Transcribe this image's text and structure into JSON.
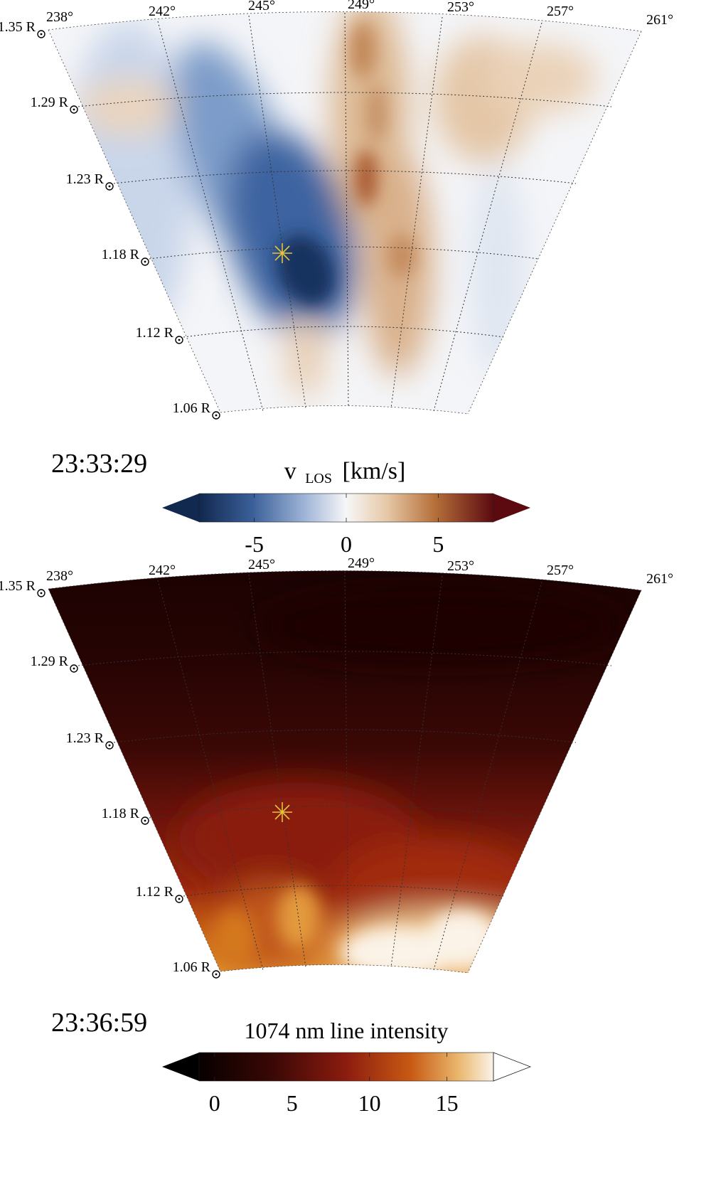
{
  "chart_data": [
    {
      "type": "heatmap",
      "panel": "top",
      "timestamp": "23:33:29",
      "title": "v LOS [km/s]",
      "title_main": "v",
      "title_sub": "LOS",
      "title_unit": "[km/s]",
      "colormap": "diverging blue-white-red",
      "colorbar_ticks": [
        "-5",
        "0",
        "5"
      ],
      "colorbar_tick_values": [
        -5,
        0,
        5
      ],
      "colorbar_range": [
        -8,
        8
      ],
      "angle_ticks": [
        "238°",
        "242°",
        "245°",
        "249°",
        "253°",
        "257°",
        "261°"
      ],
      "angle_values": [
        238,
        242,
        245,
        249,
        253,
        257,
        261
      ],
      "radius_ticks": [
        "1.35 R",
        "1.29 R",
        "1.23 R",
        "1.18 R",
        "1.12 R",
        "1.06 R"
      ],
      "radius_values": [
        1.35,
        1.29,
        1.23,
        1.18,
        1.12,
        1.06
      ],
      "radius_unit_symbol": "⊙",
      "marker": {
        "shape": "asterisk",
        "color": "#e3c43a",
        "angle": 246,
        "radius": 1.18
      },
      "grid": true
    },
    {
      "type": "heatmap",
      "panel": "bottom",
      "timestamp": "23:36:59",
      "title": "1074 nm line intensity",
      "colormap": "sequential black-red-orange-white",
      "colorbar_ticks": [
        "0",
        "5",
        "10",
        "15"
      ],
      "colorbar_tick_values": [
        0,
        5,
        10,
        15
      ],
      "colorbar_range": [
        -1,
        18
      ],
      "angle_ticks": [
        "238°",
        "242°",
        "245°",
        "249°",
        "253°",
        "257°",
        "261°"
      ],
      "angle_values": [
        238,
        242,
        245,
        249,
        253,
        257,
        261
      ],
      "radius_ticks": [
        "1.35 R",
        "1.29 R",
        "1.23 R",
        "1.18 R",
        "1.12 R",
        "1.06 R"
      ],
      "radius_values": [
        1.35,
        1.29,
        1.23,
        1.18,
        1.12,
        1.06
      ],
      "radius_unit_symbol": "⊙",
      "marker": {
        "shape": "asterisk",
        "color": "#e3c43a",
        "angle": 246,
        "radius": 1.18
      },
      "grid": true
    }
  ],
  "colors": {
    "blue_dark": "#1c3f73",
    "blue_mid": "#6b8fc2",
    "white": "#f7f7f7",
    "tan": "#dfbf9e",
    "brown": "#b5703a",
    "red_dark": "#5c0a10",
    "int_black": "#0a0000",
    "int_dark": "#3a0805",
    "int_red": "#8c1c0f",
    "int_orange": "#d06a14",
    "int_yellow": "#f2c078",
    "marker": "#e3c43a"
  }
}
